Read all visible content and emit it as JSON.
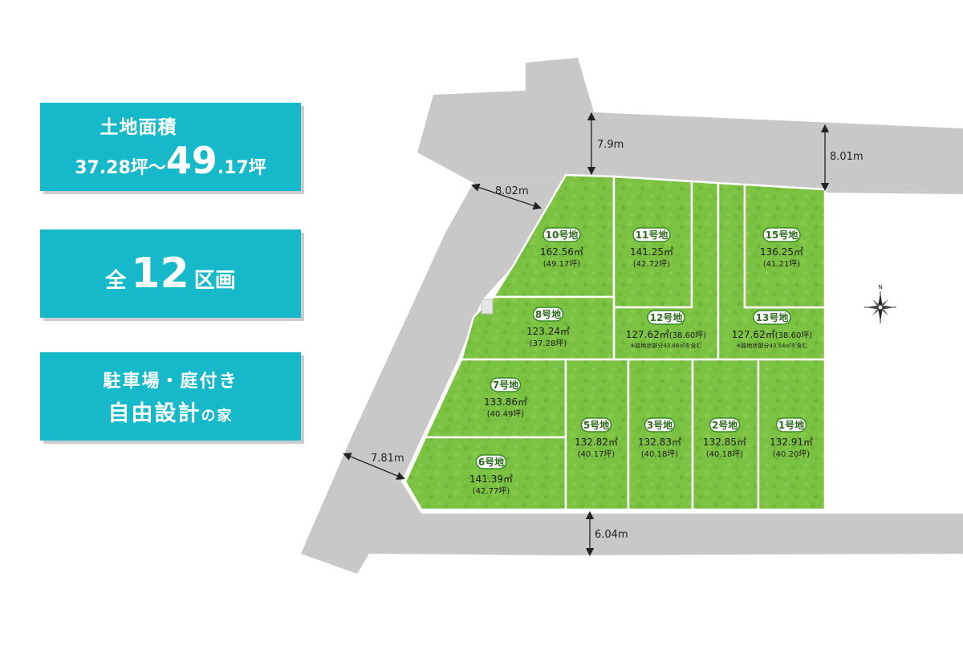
{
  "info": {
    "area_title": "土地面積",
    "area_min": "37.28坪～",
    "area_max_int": "49",
    "area_max_dec": ".17",
    "area_max_unit": "坪",
    "count_prefix": "全",
    "count_num": "12",
    "count_suffix": "区画",
    "feature_line1": "駐車場・庭付き",
    "feature_line2": "自由設計",
    "feature_line2_small": "の家"
  },
  "roads": {
    "north_width": "7.9m",
    "north_east_width": "8.01m",
    "north_west_width": "8.02m",
    "south_west_width": "7.81m",
    "south_width": "6.04m"
  },
  "lots": [
    {
      "id": "10",
      "label": "10号地",
      "area": "162.56㎡",
      "tsubo": "(49.17坪)",
      "note": ""
    },
    {
      "id": "11",
      "label": "11号地",
      "area": "141.25㎡",
      "tsubo": "(42.72坪)",
      "note": ""
    },
    {
      "id": "15",
      "label": "15号地",
      "area": "136.25㎡",
      "tsubo": "(41.21坪)",
      "note": ""
    },
    {
      "id": "8",
      "label": "8号地",
      "area": "123.24㎡",
      "tsubo": "(37.28坪)",
      "note": ""
    },
    {
      "id": "12",
      "label": "12号地",
      "area": "127.62㎡",
      "tsubo": "(38.60坪)",
      "note": "※路地状部分43.88㎡を含む"
    },
    {
      "id": "13",
      "label": "13号地",
      "area": "127.62㎡",
      "tsubo": "(38.60坪)",
      "note": "※路地状部分43.54㎡を含む"
    },
    {
      "id": "7",
      "label": "7号地",
      "area": "133.86㎡",
      "tsubo": "(40.49坪)",
      "note": ""
    },
    {
      "id": "6",
      "label": "6号地",
      "area": "141.39㎡",
      "tsubo": "(42.77坪)",
      "note": ""
    },
    {
      "id": "5",
      "label": "5号地",
      "area": "132.82㎡",
      "tsubo": "(40.17坪)",
      "note": ""
    },
    {
      "id": "3",
      "label": "3号地",
      "area": "132.83㎡",
      "tsubo": "(40.18坪)",
      "note": ""
    },
    {
      "id": "2",
      "label": "2号地",
      "area": "132.85㎡",
      "tsubo": "(40.18坪)",
      "note": ""
    },
    {
      "id": "1",
      "label": "1号地",
      "area": "132.91㎡",
      "tsubo": "(40.20坪)",
      "note": ""
    }
  ],
  "colors": {
    "accent": "#16b9c9",
    "road": "#c8c8c8",
    "lot_green": "#7bc142",
    "badge_green": "#3b8a26"
  },
  "compass": {
    "north_label": "N"
  }
}
